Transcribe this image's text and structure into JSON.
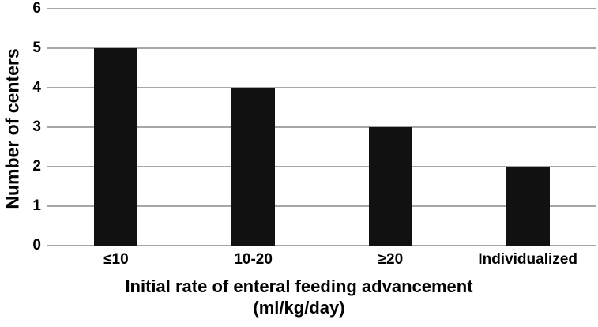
{
  "chart_data": {
    "type": "bar",
    "categories": [
      "≤10",
      "10-20",
      "≥20",
      "Individualized"
    ],
    "values": [
      5,
      4,
      3,
      2
    ],
    "title": "",
    "xlabel": "Initial rate of enteral feeding advancement",
    "xlabel_unit": "(ml/kg/day)",
    "ylabel": "Number of centers",
    "ylim": [
      0,
      6
    ],
    "yticks": [
      0,
      1,
      2,
      3,
      4,
      5,
      6
    ],
    "grid": "horizontal",
    "legend": "none",
    "bar_color": "#111111",
    "gridline_color": "#a6a6a6",
    "text_color": "#000000",
    "background_color": "#ffffff"
  }
}
